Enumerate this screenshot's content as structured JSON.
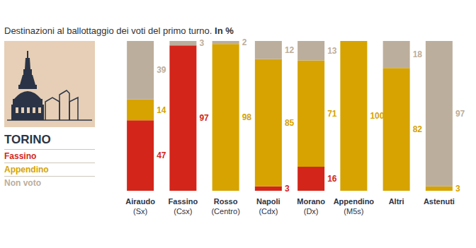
{
  "chart_data": {
    "type": "bar",
    "title": "Destinazioni al ballottaggio dei voti del primo turno.",
    "subtitle": "In %",
    "annotations": [
      "TORINO"
    ],
    "categories": [
      "Airaudo\n(Sx)",
      "Fassino\n(Csx)",
      "Rosso\n(Centro)",
      "Napoli\n(Cdx)",
      "Morano\n(Dx)",
      "Appendino\n(M5s)",
      "Altri",
      "Astenuti"
    ],
    "series": [
      {
        "name": "Fassino",
        "color": "#d3251a",
        "values": [
          47,
          97,
          null,
          3,
          16,
          null,
          null,
          null
        ]
      },
      {
        "name": "Appendino",
        "color": "#d6a300",
        "values": [
          14,
          null,
          98,
          85,
          71,
          100,
          82,
          3
        ]
      },
      {
        "name": "Non voto",
        "color": "#bcae9c",
        "values": [
          39,
          3,
          2,
          12,
          13,
          null,
          18,
          97
        ]
      }
    ],
    "ylim": [
      0,
      100
    ],
    "stacked": true,
    "data_labels": true,
    "tick_labels": "x",
    "grid": false,
    "legend": "left"
  }
}
